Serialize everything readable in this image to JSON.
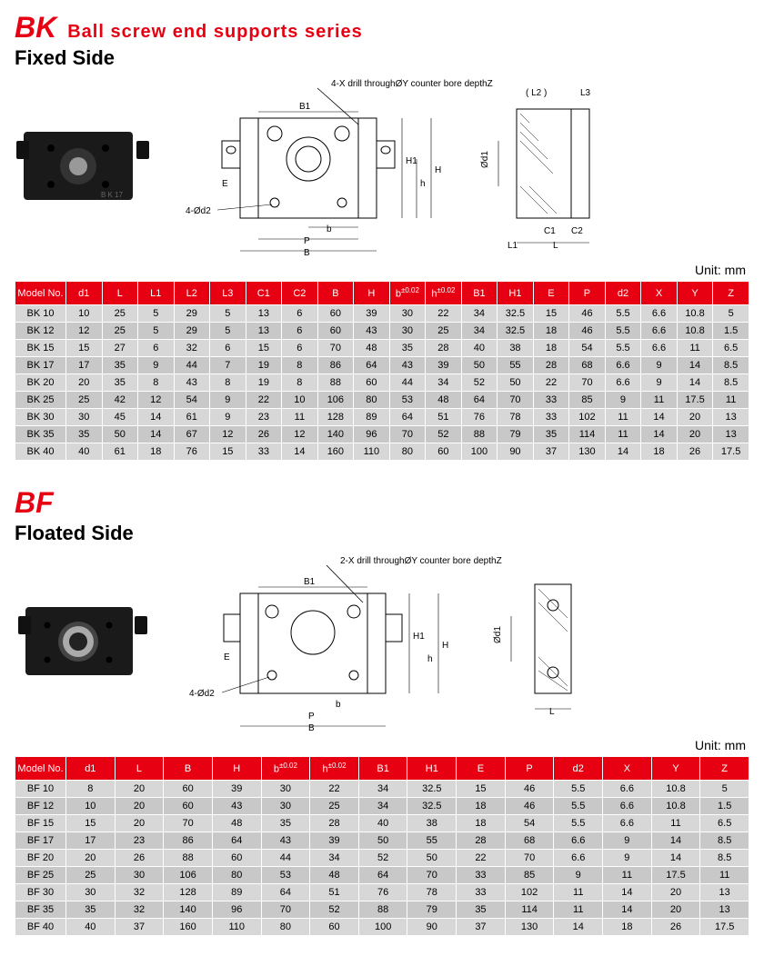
{
  "header": {
    "code": "BK",
    "series": "Ball screw end supports series",
    "subtitle": "Fixed Side"
  },
  "unit_label": "Unit: mm",
  "bk_diagram": {
    "note": "4-X drill throughØY counter bore depthZ",
    "labels": [
      "B1",
      "E",
      "4-Ød2",
      "b",
      "P",
      "B",
      "H1",
      "h",
      "H",
      "( L2 )",
      "L3",
      "Ød1",
      "C1",
      "C2",
      "L1",
      "L"
    ]
  },
  "bk_table": {
    "columns": [
      "Model No.",
      "d1",
      "L",
      "L1",
      "L2",
      "L3",
      "C1",
      "C2",
      "B",
      "H",
      "b±0.02",
      "h±0.02",
      "B1",
      "H1",
      "E",
      "P",
      "d2",
      "X",
      "Y",
      "Z"
    ],
    "rows": [
      [
        "BK 10",
        "10",
        "25",
        "5",
        "29",
        "5",
        "13",
        "6",
        "60",
        "39",
        "30",
        "22",
        "34",
        "32.5",
        "15",
        "46",
        "5.5",
        "6.6",
        "10.8",
        "5"
      ],
      [
        "BK 12",
        "12",
        "25",
        "5",
        "29",
        "5",
        "13",
        "6",
        "60",
        "43",
        "30",
        "25",
        "34",
        "32.5",
        "18",
        "46",
        "5.5",
        "6.6",
        "10.8",
        "1.5"
      ],
      [
        "BK 15",
        "15",
        "27",
        "6",
        "32",
        "6",
        "15",
        "6",
        "70",
        "48",
        "35",
        "28",
        "40",
        "38",
        "18",
        "54",
        "5.5",
        "6.6",
        "11",
        "6.5"
      ],
      [
        "BK 17",
        "17",
        "35",
        "9",
        "44",
        "7",
        "19",
        "8",
        "86",
        "64",
        "43",
        "39",
        "50",
        "55",
        "28",
        "68",
        "6.6",
        "9",
        "14",
        "8.5"
      ],
      [
        "BK 20",
        "20",
        "35",
        "8",
        "43",
        "8",
        "19",
        "8",
        "88",
        "60",
        "44",
        "34",
        "52",
        "50",
        "22",
        "70",
        "6.6",
        "9",
        "14",
        "8.5"
      ],
      [
        "BK 25",
        "25",
        "42",
        "12",
        "54",
        "9",
        "22",
        "10",
        "106",
        "80",
        "53",
        "48",
        "64",
        "70",
        "33",
        "85",
        "9",
        "11",
        "17.5",
        "11"
      ],
      [
        "BK 30",
        "30",
        "45",
        "14",
        "61",
        "9",
        "23",
        "11",
        "128",
        "89",
        "64",
        "51",
        "76",
        "78",
        "33",
        "102",
        "11",
        "14",
        "20",
        "13"
      ],
      [
        "BK 35",
        "35",
        "50",
        "14",
        "67",
        "12",
        "26",
        "12",
        "140",
        "96",
        "70",
        "52",
        "88",
        "79",
        "35",
        "114",
        "11",
        "14",
        "20",
        "13"
      ],
      [
        "BK 40",
        "40",
        "61",
        "18",
        "76",
        "15",
        "33",
        "14",
        "160",
        "110",
        "80",
        "60",
        "100",
        "90",
        "37",
        "130",
        "14",
        "18",
        "26",
        "17.5"
      ]
    ]
  },
  "bf_header": {
    "code": "BF",
    "subtitle": "Floated Side"
  },
  "bf_diagram": {
    "note": "2-X drill throughØY counter bore depthZ",
    "labels": [
      "B1",
      "E",
      "4-Ød2",
      "b",
      "P",
      "B",
      "H1",
      "h",
      "H",
      "Ød1",
      "L"
    ]
  },
  "bf_table": {
    "columns": [
      "Model No.",
      "d1",
      "L",
      "B",
      "H",
      "b±0.02",
      "h±0.02",
      "B1",
      "H1",
      "E",
      "P",
      "d2",
      "X",
      "Y",
      "Z"
    ],
    "rows": [
      [
        "BF 10",
        "8",
        "20",
        "60",
        "39",
        "30",
        "22",
        "34",
        "32.5",
        "15",
        "46",
        "5.5",
        "6.6",
        "10.8",
        "5"
      ],
      [
        "BF 12",
        "10",
        "20",
        "60",
        "43",
        "30",
        "25",
        "34",
        "32.5",
        "18",
        "46",
        "5.5",
        "6.6",
        "10.8",
        "1.5"
      ],
      [
        "BF 15",
        "15",
        "20",
        "70",
        "48",
        "35",
        "28",
        "40",
        "38",
        "18",
        "54",
        "5.5",
        "6.6",
        "11",
        "6.5"
      ],
      [
        "BF 17",
        "17",
        "23",
        "86",
        "64",
        "43",
        "39",
        "50",
        "55",
        "28",
        "68",
        "6.6",
        "9",
        "14",
        "8.5"
      ],
      [
        "BF 20",
        "20",
        "26",
        "88",
        "60",
        "44",
        "34",
        "52",
        "50",
        "22",
        "70",
        "6.6",
        "9",
        "14",
        "8.5"
      ],
      [
        "BF 25",
        "25",
        "30",
        "106",
        "80",
        "53",
        "48",
        "64",
        "70",
        "33",
        "85",
        "9",
        "11",
        "17.5",
        "11"
      ],
      [
        "BF 30",
        "30",
        "32",
        "128",
        "89",
        "64",
        "51",
        "76",
        "78",
        "33",
        "102",
        "11",
        "14",
        "20",
        "13"
      ],
      [
        "BF 35",
        "35",
        "32",
        "140",
        "96",
        "70",
        "52",
        "88",
        "79",
        "35",
        "114",
        "11",
        "14",
        "20",
        "13"
      ],
      [
        "BF 40",
        "40",
        "37",
        "160",
        "110",
        "80",
        "60",
        "100",
        "90",
        "37",
        "130",
        "14",
        "18",
        "26",
        "17.5"
      ]
    ]
  },
  "colors": {
    "header_red": "#e60012",
    "row_a": "#d7d7d7",
    "row_b": "#c8c8c8"
  }
}
